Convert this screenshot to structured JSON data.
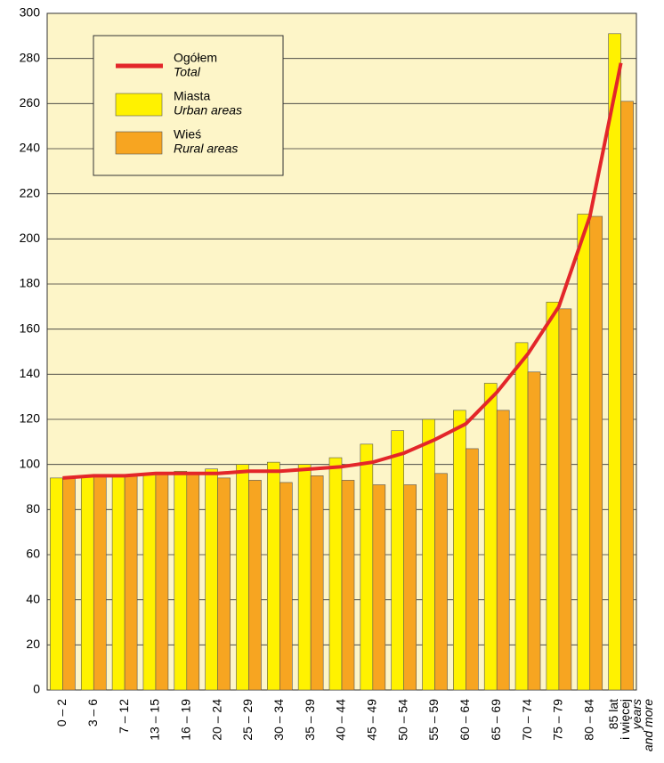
{
  "chart_data": {
    "type": "bar",
    "categories": [
      "0 – 2",
      "3 – 6",
      "7 – 12",
      "13 – 15",
      "16 – 19",
      "20 – 24",
      "25 – 29",
      "30 – 34",
      "35 – 39",
      "40 – 44",
      "45 – 49",
      "50 – 54",
      "55 – 59",
      "60 – 64",
      "65 – 69",
      "70 – 74",
      "75 – 79",
      "80 – 84",
      [
        "85 lat",
        "i więcej",
        "years",
        "and more"
      ]
    ],
    "series": [
      {
        "name": "Ogółem",
        "name_en": "Total",
        "type": "line",
        "color": "#e3262a",
        "values": [
          94,
          95,
          95,
          96,
          96,
          96,
          97,
          97,
          98,
          99,
          101,
          105,
          111,
          118,
          132,
          149,
          170,
          210,
          278
        ]
      },
      {
        "name": "Miasta",
        "name_en": "Urban areas",
        "type": "bar",
        "color": "#fff200",
        "values": [
          94,
          95,
          95,
          96,
          97,
          98,
          100,
          101,
          100,
          103,
          109,
          115,
          120,
          124,
          136,
          154,
          172,
          211,
          291
        ]
      },
      {
        "name": "Wieś",
        "name_en": "Rural areas",
        "type": "bar",
        "color": "#f7a521",
        "values": [
          94,
          95,
          95,
          96,
          96,
          94,
          93,
          92,
          95,
          93,
          91,
          91,
          96,
          107,
          124,
          141,
          169,
          210,
          261
        ]
      }
    ],
    "ylim": [
      0,
      300
    ],
    "yticks": [
      0,
      20,
      40,
      60,
      80,
      100,
      120,
      140,
      160,
      180,
      200,
      220,
      240,
      260,
      280,
      300
    ],
    "grid": true,
    "legend": "upper left"
  }
}
